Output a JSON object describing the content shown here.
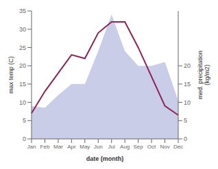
{
  "chart_data": {
    "type": "line",
    "xlabel": "date (month)",
    "ylabel": "max temp (C)",
    "y2label": "med. precipitation\n(kg/m2)",
    "categories": [
      "Jan",
      "Feb",
      "Mar",
      "Apr",
      "May",
      "Jun",
      "Jul",
      "Aug",
      "Sep",
      "Oct",
      "Nov",
      "Dec"
    ],
    "series": [
      {
        "type": "area",
        "axis": "y2",
        "color": "#b8bcdf",
        "values": [
          9,
          8.5,
          12,
          15,
          15,
          24,
          34,
          24,
          20,
          20,
          21,
          10.5
        ]
      },
      {
        "type": "line",
        "color": "#8b2252",
        "values": [
          7,
          13,
          18,
          23,
          22,
          29,
          32,
          32,
          25,
          17,
          9,
          6.5
        ]
      }
    ],
    "ylim": [
      0,
      35
    ],
    "yticks": [
      0,
      5,
      10,
      15,
      20,
      25,
      30,
      35
    ],
    "y2lim": [
      0,
      35
    ],
    "y2ticks": [
      0,
      5,
      10,
      15,
      20
    ],
    "grid": false
  }
}
